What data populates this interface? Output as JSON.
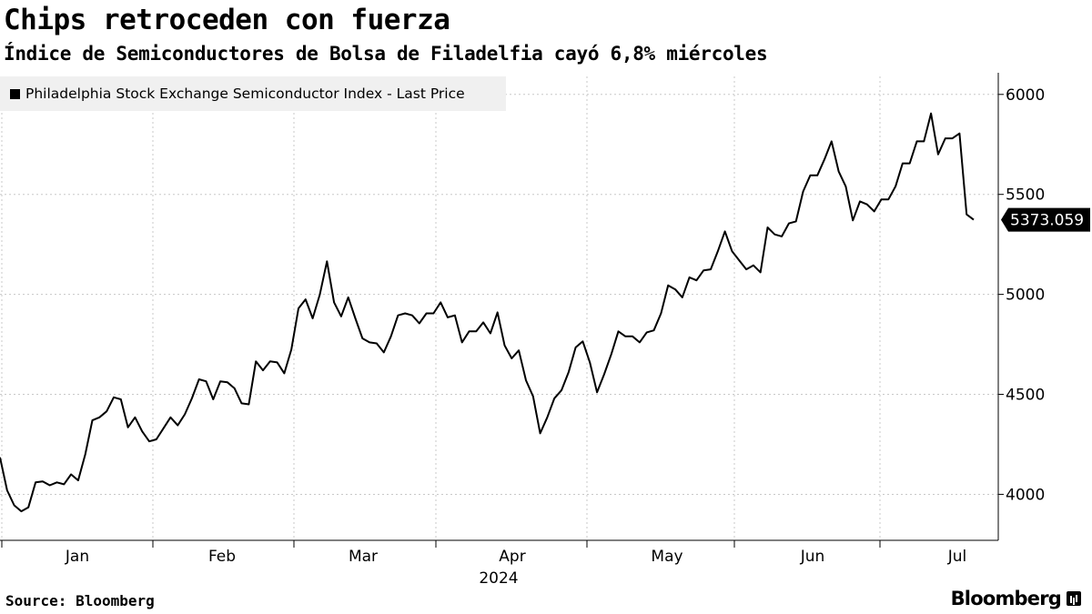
{
  "chart_data": {
    "type": "line",
    "title": "Chips retroceden con fuerza",
    "subtitle": "Índice de Semiconductores de Bolsa de Filadelfia cayó 6,8% miércoles",
    "series": [
      {
        "name": "Philadelphia Stock Exchange Semiconductor Index - Last Price",
        "values": [
          4185,
          4020,
          3945,
          3915,
          3935,
          4060,
          4065,
          4045,
          4060,
          4050,
          4100,
          4070,
          4200,
          4370,
          4385,
          4415,
          4485,
          4475,
          4335,
          4385,
          4315,
          4265,
          4275,
          4330,
          4385,
          4345,
          4400,
          4480,
          4575,
          4565,
          4475,
          4565,
          4560,
          4530,
          4455,
          4450,
          4665,
          4620,
          4665,
          4660,
          4605,
          4725,
          4930,
          4975,
          4880,
          5000,
          5165,
          4960,
          4890,
          4985,
          4880,
          4780,
          4760,
          4755,
          4710,
          4790,
          4895,
          4905,
          4895,
          4855,
          4905,
          4905,
          4960,
          4885,
          4895,
          4760,
          4815,
          4815,
          4860,
          4805,
          4910,
          4745,
          4680,
          4720,
          4570,
          4490,
          4305,
          4385,
          4480,
          4520,
          4610,
          4735,
          4765,
          4660,
          4510,
          4600,
          4700,
          4815,
          4790,
          4790,
          4760,
          4810,
          4820,
          4905,
          5045,
          5025,
          4985,
          5085,
          5070,
          5120,
          5125,
          5215,
          5315,
          5215,
          5170,
          5125,
          5145,
          5110,
          5335,
          5300,
          5290,
          5355,
          5365,
          5515,
          5595,
          5595,
          5675,
          5765,
          5615,
          5540,
          5370,
          5465,
          5450,
          5415,
          5475,
          5475,
          5540,
          5655,
          5655,
          5765,
          5765,
          5905,
          5700,
          5780,
          5780,
          5805,
          5400,
          5373.059
        ]
      }
    ],
    "last_value_label": "5373.059",
    "x_labels": [
      "Jan",
      "Feb",
      "Mar",
      "Apr",
      "May",
      "Jun",
      "Jul"
    ],
    "x_year_label": "2024",
    "y_ticks": [
      4000,
      4500,
      5000,
      5500,
      6000
    ],
    "y_tick_labels": [
      "4000",
      "4500",
      "5000",
      "5500",
      "6000"
    ],
    "ylim": [
      3770,
      6090
    ],
    "xlabel": "",
    "ylabel": "",
    "grid": "dotted",
    "legend_position": "top-left",
    "line_color": "#000000",
    "grid_color": "#c8c8c8"
  },
  "footer": {
    "source": "Source: Bloomberg",
    "brand": "Bloomberg"
  }
}
